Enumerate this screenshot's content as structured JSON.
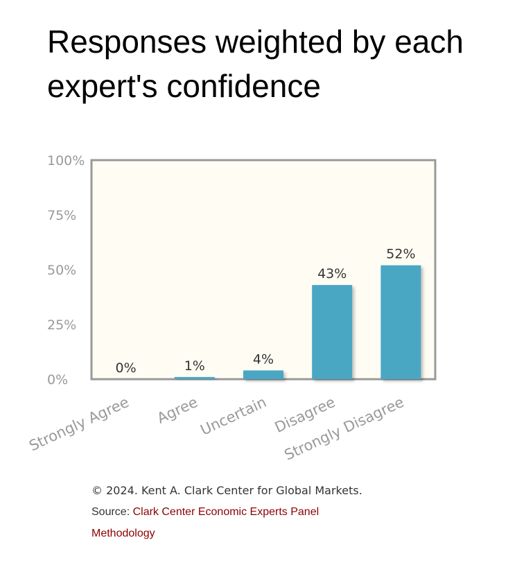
{
  "title": "Responses weighted by each expert's confidence",
  "footer": {
    "copyright": "© 2024. Kent A. Clark Center for Global Markets.",
    "source_prefix": "Source: ",
    "source_link": "Clark Center Economic Experts Panel",
    "methodology": "Methodology"
  },
  "chart_data": {
    "type": "bar",
    "categories": [
      "Strongly Agree",
      "Agree",
      "Uncertain",
      "Disagree",
      "Strongly Disagree"
    ],
    "values": [
      0,
      1,
      4,
      43,
      52
    ],
    "data_labels": [
      "0%",
      "1%",
      "4%",
      "43%",
      "52%"
    ],
    "ylim": [
      0,
      100
    ],
    "yticks": [
      "0%",
      "25%",
      "50%",
      "75%",
      "100%"
    ],
    "grid": false,
    "bar_color": "#4aa7c4",
    "plot_background": "#fffdf3"
  }
}
